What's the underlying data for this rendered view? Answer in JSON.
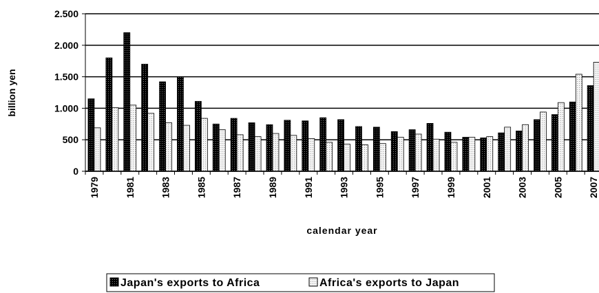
{
  "chart_data": {
    "type": "bar",
    "y_label": "billion yen",
    "x_label": "calendar year",
    "categories": [
      "1979",
      null,
      "1981",
      null,
      "1983",
      null,
      "1985",
      null,
      "1987",
      null,
      "1989",
      null,
      "1991",
      null,
      "1993",
      null,
      "1995",
      null,
      "1997",
      null,
      "1999",
      null,
      "2001",
      null,
      "2003",
      null,
      "2005",
      null,
      "2007"
    ],
    "series": [
      {
        "name": "Japan's exports to Africa",
        "color": "#1a1a1a",
        "values": [
          1150,
          1800,
          2200,
          1700,
          1420,
          1500,
          1110,
          750,
          840,
          770,
          740,
          810,
          800,
          850,
          820,
          710,
          700,
          630,
          660,
          760,
          620,
          540,
          530,
          610,
          640,
          820,
          900,
          1100,
          1360
        ]
      },
      {
        "name": "Africa's exports to Japan",
        "color": "#ececec",
        "values": [
          690,
          1010,
          1050,
          920,
          770,
          730,
          840,
          660,
          580,
          550,
          600,
          570,
          520,
          460,
          430,
          420,
          440,
          540,
          590,
          510,
          460,
          540,
          550,
          700,
          740,
          940,
          1090,
          1540,
          1730
        ]
      }
    ],
    "ylim": [
      0,
      2500
    ],
    "yticks": [
      0,
      500,
      {
        "value": 1000,
        "label": "1.000"
      },
      {
        "value": 1500,
        "label": "1.500"
      },
      {
        "value": 2000,
        "label": "2.000"
      },
      {
        "value": 2500,
        "label": "2.500"
      }
    ],
    "grid": true,
    "legend": "bottom"
  }
}
